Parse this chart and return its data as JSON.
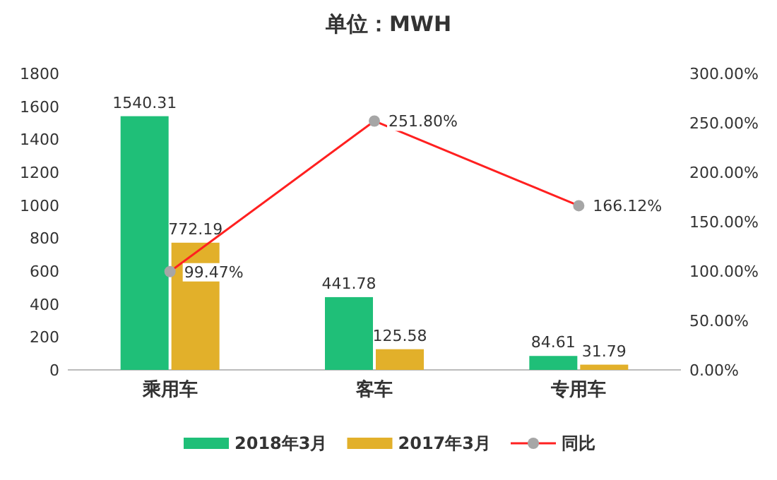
{
  "chart_data": {
    "type": "bar",
    "title": "单位：MWH",
    "categories": [
      "乘用车",
      "客车",
      "专用车"
    ],
    "series": [
      {
        "name": "2018年3月",
        "color": "#1fbf78",
        "values": [
          1540.31,
          441.78,
          84.61
        ]
      },
      {
        "name": "2017年3月",
        "color": "#e2b02a",
        "values": [
          772.19,
          125.58,
          31.79
        ]
      },
      {
        "name": "同比",
        "type": "line",
        "axis": "y2",
        "color": "#ff2020",
        "marker": "circle",
        "values": [
          99.47,
          251.8,
          166.12
        ],
        "value_labels": [
          "99.47%",
          "251.80%",
          "166.12%"
        ]
      }
    ],
    "ylim": [
      0,
      1800
    ],
    "yticks": [
      0,
      200,
      400,
      600,
      800,
      1000,
      1200,
      1400,
      1600,
      1800
    ],
    "y2lim": [
      0,
      300
    ],
    "y2ticks": [
      {
        "value": 0,
        "label": "0.00%"
      },
      {
        "value": 50,
        "label": "50.00%"
      },
      {
        "value": 100,
        "label": "100.00%"
      },
      {
        "value": 150,
        "label": "150.00%"
      },
      {
        "value": 200,
        "label": "200.00%"
      },
      {
        "value": 250,
        "label": "250.00%"
      },
      {
        "value": 300,
        "label": "300.00%"
      }
    ],
    "data_labels": true,
    "legend": "bottom"
  }
}
